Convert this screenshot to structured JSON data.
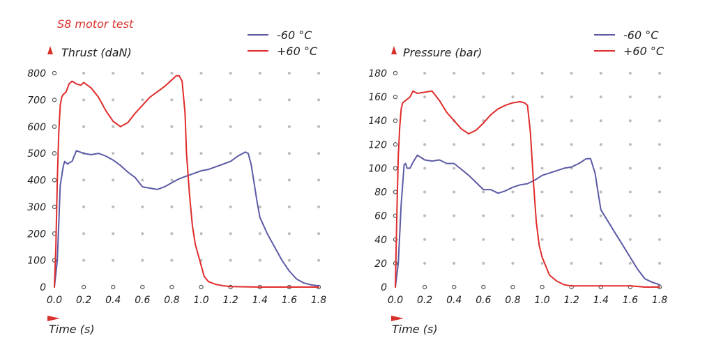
{
  "title": "S8 motor test",
  "colors": {
    "cold": "#5b5aa5",
    "hot": "#e02b2b",
    "grid": "#bbbbbb",
    "axis": "#555555",
    "title": "#d9302a"
  },
  "chart_data": [
    {
      "type": "line",
      "ylabel": "Thrust (daN)",
      "xlabel": "Time (s)",
      "xlim": [
        0,
        1.8
      ],
      "ylim": [
        0,
        800
      ],
      "xticks": [
        "0.0",
        "0.2",
        "0.4",
        "0.6",
        "0.8",
        "1.0",
        "1.2",
        "1.4",
        "1.6",
        "1.8"
      ],
      "yticks": [
        "0",
        "100",
        "200",
        "300",
        "400",
        "500",
        "600",
        "700",
        "800"
      ],
      "ytick_values": [
        0,
        100,
        200,
        300,
        400,
        500,
        600,
        700,
        800
      ],
      "grid": true,
      "legend_position": "top-right",
      "series": [
        {
          "name": "-60 °C",
          "color": "#5b5aa5",
          "x": [
            0.0,
            0.02,
            0.04,
            0.06,
            0.07,
            0.08,
            0.09,
            0.1,
            0.12,
            0.15,
            0.2,
            0.25,
            0.3,
            0.35,
            0.4,
            0.45,
            0.5,
            0.55,
            0.6,
            0.65,
            0.7,
            0.75,
            0.8,
            0.85,
            0.9,
            0.95,
            1.0,
            1.05,
            1.1,
            1.15,
            1.2,
            1.25,
            1.3,
            1.32,
            1.34,
            1.36,
            1.38,
            1.4,
            1.45,
            1.5,
            1.55,
            1.6,
            1.65,
            1.7,
            1.75,
            1.8
          ],
          "y": [
            0,
            100,
            380,
            450,
            470,
            465,
            460,
            465,
            470,
            510,
            500,
            495,
            500,
            490,
            475,
            455,
            430,
            410,
            375,
            370,
            365,
            375,
            390,
            405,
            415,
            425,
            435,
            440,
            450,
            460,
            470,
            490,
            505,
            500,
            460,
            390,
            320,
            260,
            200,
            150,
            100,
            60,
            30,
            15,
            8,
            5
          ]
        },
        {
          "name": "+60 °C",
          "color": "#e02b2b",
          "x": [
            0.0,
            0.01,
            0.02,
            0.03,
            0.04,
            0.05,
            0.06,
            0.08,
            0.1,
            0.12,
            0.15,
            0.18,
            0.2,
            0.25,
            0.3,
            0.35,
            0.4,
            0.45,
            0.5,
            0.55,
            0.6,
            0.65,
            0.7,
            0.75,
            0.8,
            0.83,
            0.85,
            0.87,
            0.89,
            0.9,
            0.92,
            0.94,
            0.96,
            0.98,
            1.0,
            1.02,
            1.05,
            1.1,
            1.15,
            1.2,
            1.3,
            1.4,
            1.5,
            1.6,
            1.7,
            1.8
          ],
          "y": [
            0,
            150,
            400,
            580,
            680,
            710,
            720,
            730,
            760,
            770,
            760,
            755,
            765,
            745,
            710,
            660,
            620,
            600,
            615,
            650,
            680,
            710,
            730,
            750,
            775,
            790,
            790,
            770,
            650,
            500,
            350,
            230,
            160,
            120,
            80,
            40,
            20,
            10,
            5,
            2,
            1,
            0,
            0,
            0,
            0,
            0
          ]
        }
      ]
    },
    {
      "type": "line",
      "ylabel": "Pressure (bar)",
      "xlabel": "Time (s)",
      "xlim": [
        0,
        1.8
      ],
      "ylim": [
        0,
        180
      ],
      "xticks": [
        "0.0",
        "0.2",
        "0.4",
        "0.6",
        "0.8",
        "1.0",
        "1.2",
        "1.4",
        "1.6",
        "1.8"
      ],
      "yticks": [
        "0",
        "20",
        "40",
        "60",
        "80",
        "100",
        "120",
        "140",
        "160",
        "180"
      ],
      "ytick_values": [
        0,
        20,
        40,
        60,
        80,
        100,
        120,
        140,
        160,
        180
      ],
      "grid": true,
      "legend_position": "top-right",
      "series": [
        {
          "name": "-60 °C",
          "color": "#5b5aa5",
          "x": [
            0.0,
            0.02,
            0.04,
            0.06,
            0.07,
            0.08,
            0.1,
            0.12,
            0.15,
            0.2,
            0.25,
            0.3,
            0.35,
            0.4,
            0.45,
            0.5,
            0.55,
            0.6,
            0.65,
            0.7,
            0.75,
            0.8,
            0.85,
            0.9,
            0.95,
            1.0,
            1.05,
            1.1,
            1.15,
            1.2,
            1.25,
            1.3,
            1.33,
            1.36,
            1.38,
            1.4,
            1.45,
            1.5,
            1.55,
            1.6,
            1.65,
            1.7,
            1.75,
            1.8
          ],
          "y": [
            0,
            20,
            70,
            103,
            104,
            100,
            100,
            105,
            111,
            107,
            106,
            107,
            104,
            104,
            99,
            94,
            88,
            82,
            82,
            79,
            81,
            84,
            86,
            87,
            90,
            94,
            96,
            98,
            100,
            101,
            104,
            108,
            108,
            96,
            80,
            65,
            55,
            45,
            35,
            25,
            15,
            7,
            4,
            2
          ]
        },
        {
          "name": "+60 °C",
          "color": "#e02b2b",
          "x": [
            0.0,
            0.01,
            0.02,
            0.03,
            0.04,
            0.05,
            0.07,
            0.1,
            0.12,
            0.15,
            0.2,
            0.25,
            0.3,
            0.35,
            0.4,
            0.45,
            0.5,
            0.55,
            0.6,
            0.65,
            0.7,
            0.75,
            0.8,
            0.85,
            0.88,
            0.9,
            0.92,
            0.94,
            0.96,
            0.98,
            1.0,
            1.05,
            1.1,
            1.15,
            1.2,
            1.3,
            1.4,
            1.5,
            1.6,
            1.7,
            1.8
          ],
          "y": [
            0,
            60,
            110,
            135,
            150,
            155,
            157,
            160,
            165,
            163,
            164,
            165,
            157,
            147,
            140,
            133,
            129,
            132,
            138,
            145,
            150,
            153,
            155,
            156,
            155,
            153,
            130,
            90,
            55,
            35,
            25,
            10,
            5,
            2,
            1,
            1,
            1,
            1,
            1,
            0,
            0
          ]
        }
      ]
    }
  ]
}
